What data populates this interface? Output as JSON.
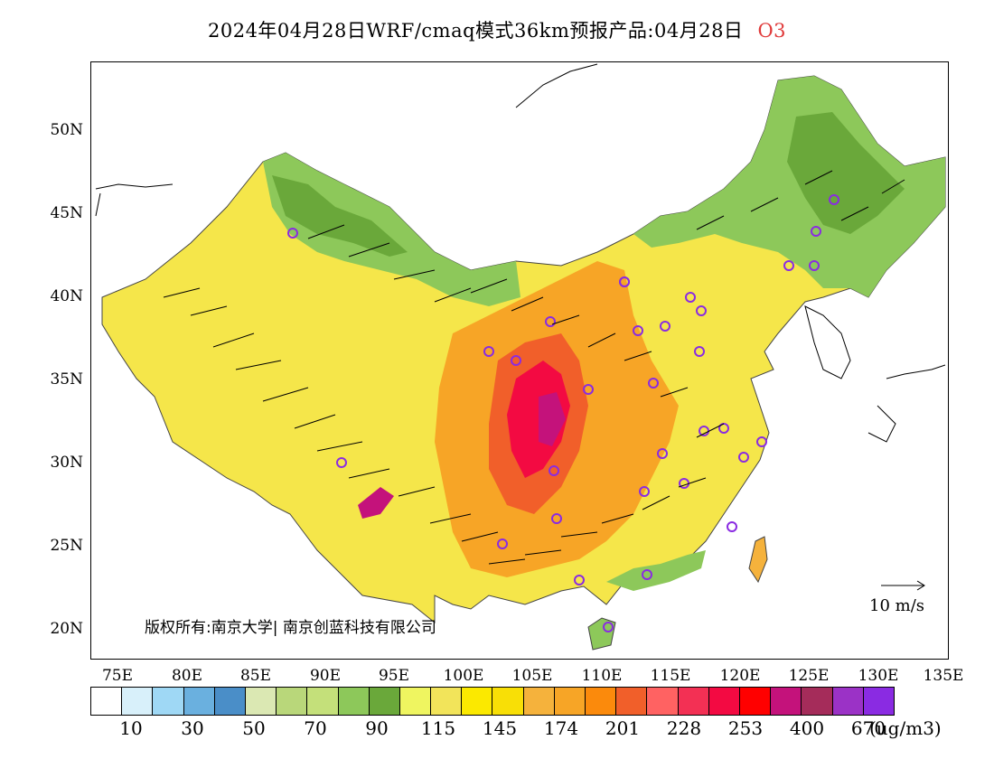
{
  "title": "2024年04月28日WRF/cmaq模式36km预报产品:04月28日",
  "species": "O3",
  "copyright": "版权所有:南京大学| 南京创蓝科技有限公司",
  "wind_reference": "10 m/s",
  "lat_labels": [
    "50N",
    "45N",
    "40N",
    "35N",
    "30N",
    "25N",
    "20N"
  ],
  "lon_labels": [
    "75E",
    "80E",
    "85E",
    "90E",
    "95E",
    "100E",
    "105E",
    "110E",
    "115E",
    "120E",
    "125E",
    "130E",
    "135E"
  ],
  "colorbar": {
    "unit": "(ug/m3)",
    "colors": [
      "#ffffff",
      "#d8f0fa",
      "#9fd8f5",
      "#6ab0df",
      "#4a8ec8",
      "#dbe8b3",
      "#b9d77a",
      "#c4e07a",
      "#8dc85a",
      "#6aa83a",
      "#eff560",
      "#f2e45a",
      "#fbe900",
      "#f8df06",
      "#f5b23c",
      "#f7a526",
      "#fb8a0c",
      "#f15f2a",
      "#ff6262",
      "#f33054",
      "#f30a42",
      "#ff0000",
      "#c4127b",
      "#a52c5a",
      "#9b32c6",
      "#8a2be2"
    ],
    "tick_labels": [
      "10",
      "30",
      "50",
      "70",
      "90",
      "115",
      "145",
      "174",
      "201",
      "228",
      "253",
      "400",
      "670"
    ]
  }
}
